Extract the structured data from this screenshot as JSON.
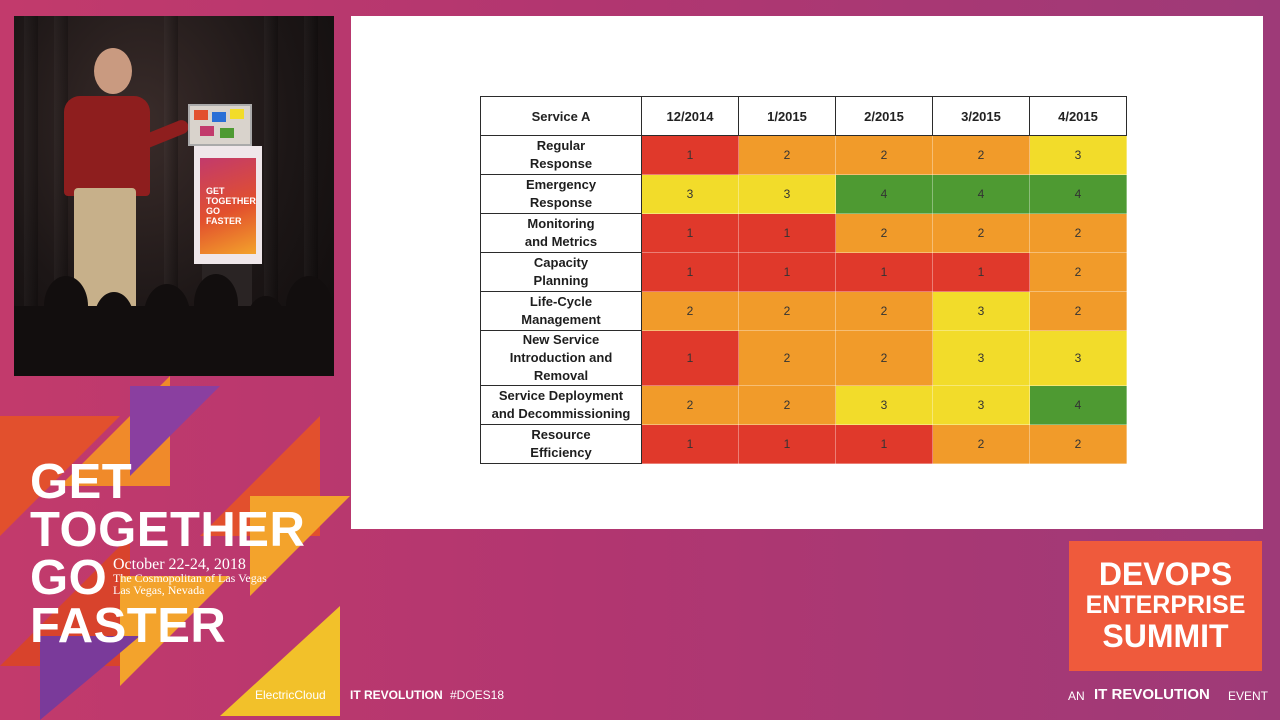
{
  "slide": {
    "table_header": [
      "Service A",
      "12/2014",
      "1/2015",
      "2/2015",
      "3/2015",
      "4/2015"
    ],
    "rows": [
      {
        "label": "Regular\nResponse",
        "values": [
          "1",
          "2",
          "2",
          "2",
          "3"
        ]
      },
      {
        "label": "Emergency\nResponse",
        "values": [
          "3",
          "3",
          "4",
          "4",
          "4"
        ]
      },
      {
        "label": "Monitoring\nand Metrics",
        "values": [
          "1",
          "1",
          "2",
          "2",
          "2"
        ]
      },
      {
        "label": "Capacity\nPlanning",
        "values": [
          "1",
          "1",
          "1",
          "1",
          "2"
        ]
      },
      {
        "label": "Life-Cycle\nManagement",
        "values": [
          "2",
          "2",
          "2",
          "3",
          "2"
        ]
      },
      {
        "label": "New Service\nIntroduction and Removal",
        "values": [
          "1",
          "2",
          "2",
          "3",
          "3"
        ]
      },
      {
        "label": "Service Deployment\nand Decommissioning",
        "values": [
          "2",
          "2",
          "3",
          "3",
          "4"
        ]
      },
      {
        "label": "Resource\nEfficiency",
        "values": [
          "1",
          "1",
          "1",
          "2",
          "2"
        ]
      }
    ],
    "level_colors": {
      "1": "#e0392b",
      "2": "#f19b2a",
      "3": "#f2dc2a",
      "4": "#4e9a32"
    }
  },
  "branding": {
    "get_together_lines": [
      "GET",
      "TOGETHER",
      "GO",
      "FASTER"
    ],
    "date": "October 22-24, 2018",
    "venue_line1": "The Cosmopolitan of Las Vegas",
    "venue_line2": "Las Vegas, Nevada",
    "podium_sign": "GET TOGETHER GO FASTER",
    "summit_logo": [
      "DEVOPS",
      "ENTERPRISE",
      "SUMMIT"
    ],
    "accent_color": "#ef5a3c"
  },
  "footer": {
    "sponsor1": "ElectricCloud",
    "sponsor2": "IT REVOLUTION",
    "hashtag": "#DOES18",
    "an": "AN",
    "it_revolution": "IT REVOLUTION",
    "event": "EVENT"
  }
}
